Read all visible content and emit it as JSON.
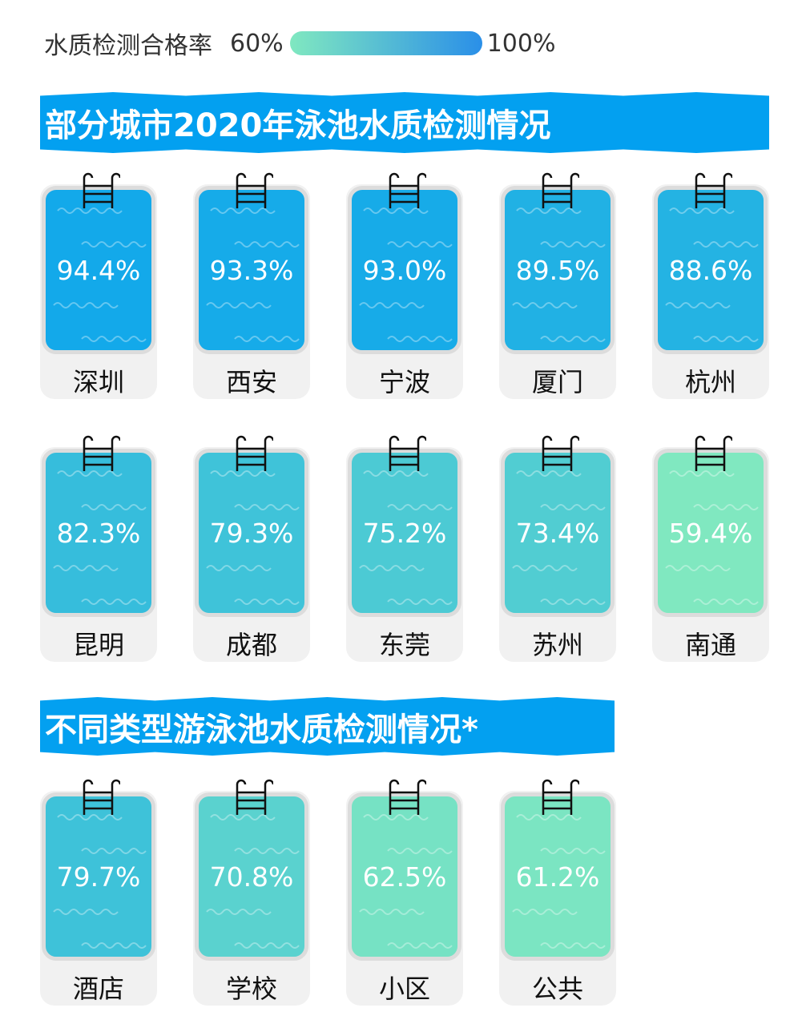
{
  "legend": {
    "label": "水质检测合格率",
    "min_label": "60%",
    "max_label": "100%",
    "min_color": "#80e8c0",
    "max_color": "#03a0f0"
  },
  "chart_data": [
    {
      "type": "table",
      "title": "部分城市2020年泳池水质检测情况",
      "categories": [
        "深圳",
        "西安",
        "宁波",
        "厦门",
        "杭州",
        "昆明",
        "成都",
        "东莞",
        "苏州",
        "南通"
      ],
      "values": [
        94.4,
        93.3,
        93.0,
        89.5,
        88.6,
        82.3,
        79.3,
        75.2,
        73.4,
        59.4
      ],
      "labels": [
        "94.4%",
        "93.3%",
        "93.0%",
        "89.5%",
        "88.6%",
        "82.3%",
        "79.3%",
        "75.2%",
        "73.4%",
        "59.4%"
      ]
    },
    {
      "type": "table",
      "title": "不同类型游泳池水质检测情况*",
      "categories": [
        "酒店",
        "学校",
        "小区",
        "公共"
      ],
      "values": [
        79.7,
        70.8,
        62.5,
        61.2
      ],
      "labels": [
        "79.7%",
        "70.8%",
        "62.5%",
        "61.2%"
      ]
    }
  ]
}
